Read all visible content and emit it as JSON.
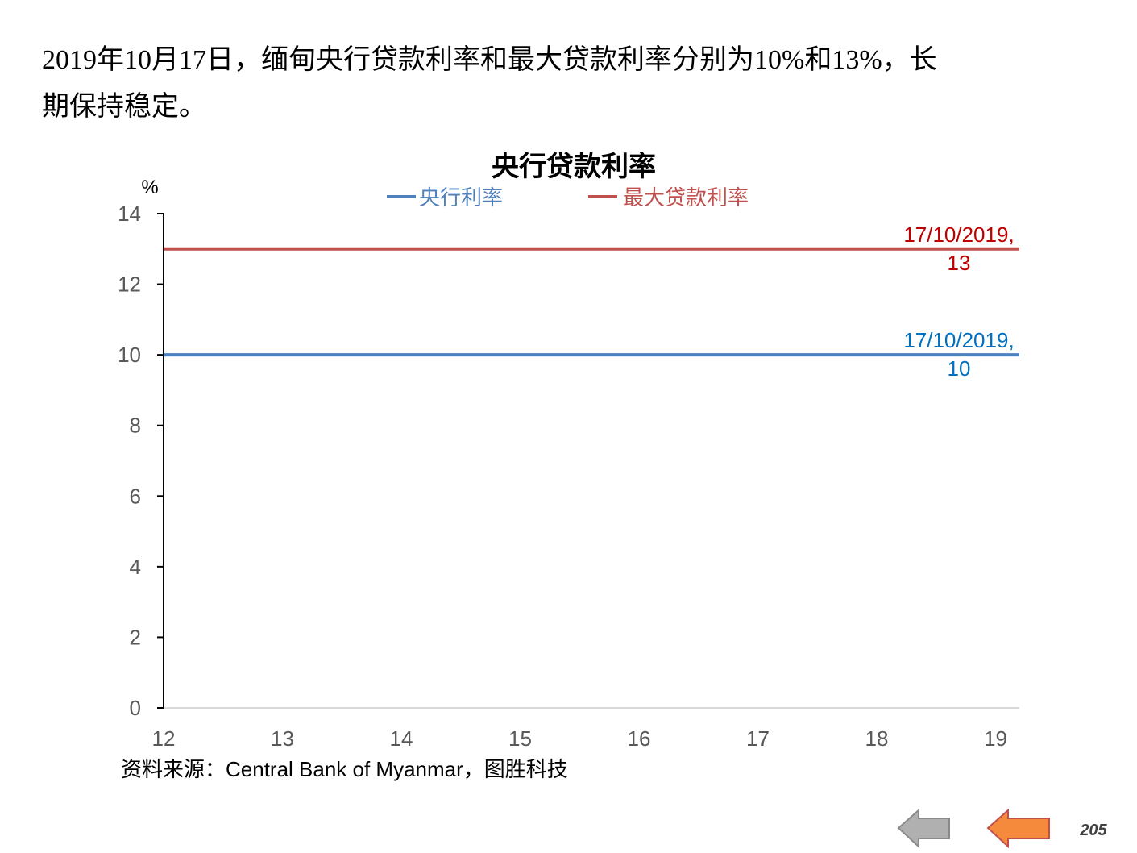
{
  "header": {
    "lines": [
      "2019年10月17日，缅甸央行贷款利率和最大贷款利率分别为10%和13%，长",
      "期保持稳定。"
    ]
  },
  "chart_data": {
    "type": "line",
    "title": "央行贷款利率",
    "ylabel": "%",
    "x": [
      12,
      19.2
    ],
    "xlim": [
      12,
      19.2
    ],
    "xticks": [
      12,
      13,
      14,
      15,
      16,
      17,
      18,
      19
    ],
    "ylim": [
      0,
      14
    ],
    "yticks": [
      0,
      2,
      4,
      6,
      8,
      10,
      12,
      14
    ],
    "series": [
      {
        "name": "央行利率",
        "color": "#4f81bd",
        "label_color": "#0070c0",
        "values": [
          10,
          10
        ],
        "label": [
          "17/10/2019,",
          "10"
        ]
      },
      {
        "name": "最大贷款利率",
        "color": "#c0504d",
        "label_color": "#c00000",
        "values": [
          13,
          13
        ],
        "label": [
          "17/10/2019,",
          "13"
        ]
      }
    ]
  },
  "source": "资料来源：Central Bank of Myanmar，图胜科技",
  "page_number": "205"
}
